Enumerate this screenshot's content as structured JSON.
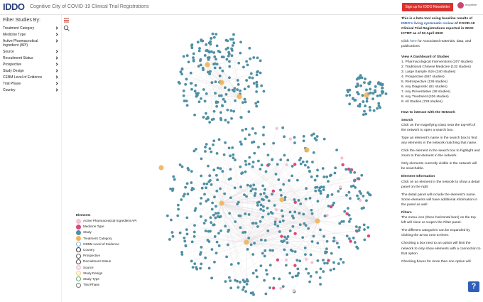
{
  "header": {
    "logo": "IDDO",
    "title": "Cognitive City of COVID-19 Clinical Trial Registrations",
    "button": "Sign up for IDDO Newsletter",
    "partner": "ecoptime"
  },
  "sidebar": {
    "title": "Filter Studies By:",
    "filters": [
      "Treatment Category",
      "Medicine Type",
      "Active Pharmaceutical Ingredient (API)",
      "Source",
      "Recruitment Status",
      "Prospective",
      "Study Design",
      "CEBM Level of Evidence",
      "Trial Phase",
      "Country"
    ]
  },
  "legend": {
    "title": "Elements",
    "items": [
      {
        "label": "Active Pharmaceutical Ingredient API",
        "color": "#f6c4cf",
        "border": "#f6c4cf"
      },
      {
        "label": "Medicine Type",
        "color": "#e0457b",
        "border": "#e0457b"
      },
      {
        "label": "Study",
        "color": "#4e8fa3",
        "border": "#4e8fa3"
      },
      {
        "label": "Treatment Category",
        "color": "#f0b45a",
        "border": "#f0b45a"
      },
      {
        "label": "CEBM Level of Evidence",
        "color": "#ffffff",
        "border": "#7fb2d9"
      },
      {
        "label": "Country",
        "color": "#ffffff",
        "border": "#333333"
      },
      {
        "label": "Prospective",
        "color": "#ffffff",
        "border": "#555555"
      },
      {
        "label": "Recruitment Status",
        "color": "#ffffff",
        "border": "#444444"
      },
      {
        "label": "Source",
        "color": "#fde3ec",
        "border": "#f3c1d2"
      },
      {
        "label": "Study Design",
        "color": "#fff8dc",
        "border": "#e9d48f"
      },
      {
        "label": "Study Type",
        "color": "#ffffff",
        "border": "#6aa86a"
      },
      {
        "label": "Trial Phase",
        "color": "#ffffff",
        "border": "#777777"
      }
    ]
  },
  "panel": {
    "intro": [
      "This is a beta tool using baseline results of ",
      "IDDO's living systematic review",
      " of COVID-19 Clinical Trial Registrations reported in WHO ICTRP as of 03 April 2020"
    ],
    "materials": [
      "Click ",
      "here",
      " for Associated materials, data, and publications"
    ],
    "dashboard_title": "View A Dashboard of Studies",
    "dashboard": [
      "1. Pharmacological Interventions (207 studies)",
      "2. Traditional Chinese Medicine (132 studies)",
      "3. Large Sample Size (340 studies)",
      "4. Prospective (567 studies)",
      "5. Retrospective (136 studies)",
      "6. Any Diagnostic (61 studies)",
      "7. Any Preventative (38 studies)",
      "8. Any Treatment (436 studies)",
      "9. All Studies (728 studies)"
    ],
    "howto_title": "How to interact with the Network",
    "sections": [
      {
        "heading": "Search",
        "paragraphs": [
          "Click on the magnifying class near the top-left of the network to open a search box.",
          "Type an element's name in the search box to find any elements in the network matching that name.",
          "Click the element in the search box to highlight and zoom to that element in the network.",
          "Only elements currently visible in the network will be searchable."
        ]
      },
      {
        "heading": "Element Information",
        "paragraphs": [
          "Click on an element in the network to show a detail panel on the right",
          "The detail panel will include the element's name. Some elements will have additional information in the panel as well."
        ]
      },
      {
        "heading": "Filters",
        "paragraphs": [
          "The menu icon (three horizontal bars) on the top left will close or reopen the Filter panel.",
          "The different categories can be expanded by clicking the arrow next to them.",
          "Checking a box next to an option will limit the network to only show elements with a connection to that option.",
          "Checking boxes for more than one option will"
        ]
      }
    ]
  },
  "help_button": "?"
}
